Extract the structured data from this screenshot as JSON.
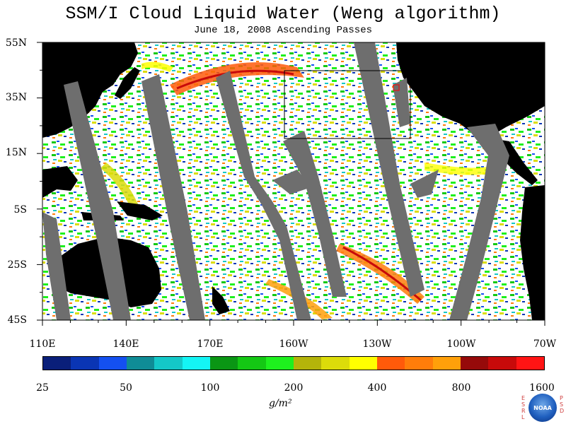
{
  "title": "SSM/I Cloud Liquid Water (Weng algorithm)",
  "subtitle": "June 18, 2008  Ascending Passes",
  "lat_labels": [
    "55N",
    "35N",
    "15N",
    "5S",
    "25S",
    "45S"
  ],
  "lon_labels": [
    "110E",
    "140E",
    "170E",
    "160W",
    "130W",
    "100W",
    "70W"
  ],
  "colorbar": {
    "colors": [
      "#0a1f7a",
      "#0a35b4",
      "#1450f0",
      "#0f8c96",
      "#14c8c8",
      "#14f5f5",
      "#0a9614",
      "#14c814",
      "#1ef01e",
      "#b4b40a",
      "#dcdc0a",
      "#ffff00",
      "#ff5a0a",
      "#ff7d0a",
      "#ffa00a",
      "#960a0a",
      "#c80a0a",
      "#ff1414"
    ],
    "ticks": [
      "25",
      "50",
      "100",
      "200",
      "400",
      "800",
      "1600"
    ]
  },
  "units": "g/m²",
  "logo": {
    "left_letters": "ESRL",
    "right_letters": "PSD",
    "center_text": "NOAA"
  }
}
